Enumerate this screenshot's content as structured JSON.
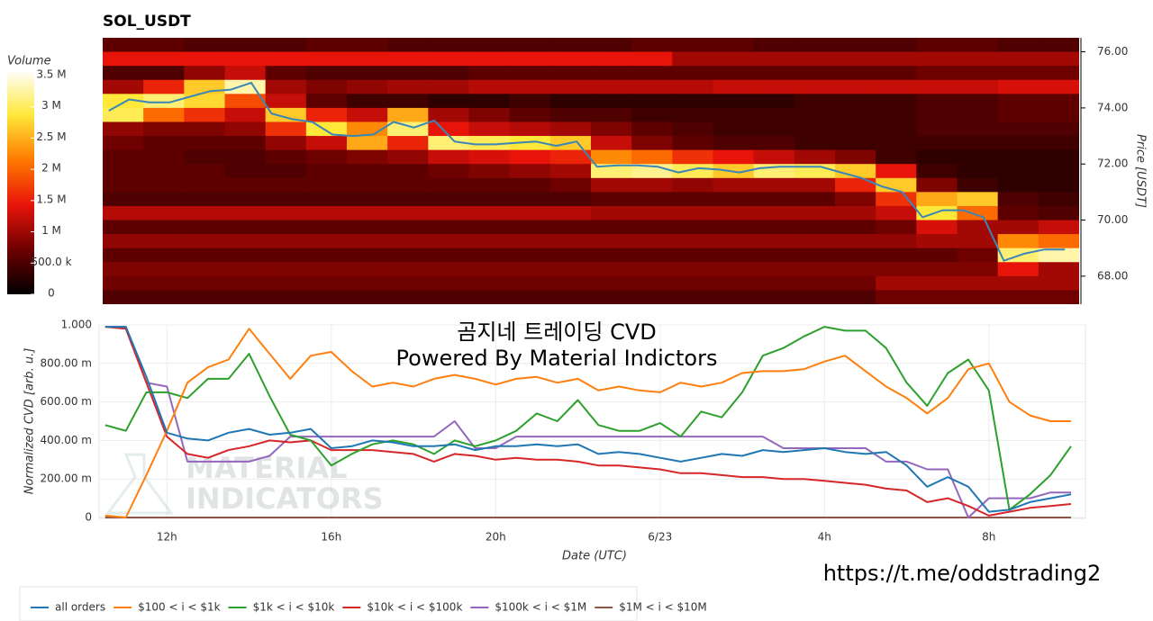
{
  "chart_data": [
    {
      "type": "heatmap",
      "title": "SOL_USDT",
      "ylabel": "Price [USDT]",
      "xlim": [
        10.35,
        34.35
      ],
      "ylim": [
        67,
        76.5
      ],
      "yticks": [
        {
          "value": 68,
          "label": "68.00"
        },
        {
          "value": 70,
          "label": "70.00"
        },
        {
          "value": 72,
          "label": "72.00"
        },
        {
          "value": 74,
          "label": "74.00"
        },
        {
          "value": 76,
          "label": "76.00"
        }
      ],
      "colorbar_title": "Volume",
      "zlim": [
        0,
        3.5
      ],
      "zticks": [
        0,
        {
          "value": 0.5,
          "label": "500.0 k"
        },
        {
          "value": 1,
          "label": "1 M"
        },
        {
          "value": 1.5,
          "label": "1.5 M"
        },
        {
          "value": 2,
          "label": "2 M"
        },
        {
          "value": 2.5,
          "label": "2.5 M"
        },
        {
          "value": 3,
          "label": "3 M"
        },
        {
          "value": 3.5,
          "label": "3.5 M"
        }
      ],
      "colormap": [
        "#000000",
        "#6e0000",
        "#e8140a",
        "#ff7a00",
        "#ffe83a",
        "#ffffff"
      ],
      "x_bins": [
        10.35,
        11.35,
        12.35,
        13.35,
        14.35,
        15.35,
        16.35,
        17.35,
        18.35,
        19.35,
        20.35,
        21.35,
        22.35,
        23.35,
        24.35,
        25.35,
        26.35,
        27.35,
        28.35,
        29.35,
        30.35,
        31.35,
        32.35,
        33.35,
        34.35
      ],
      "y_bins": [
        76.5,
        76,
        75.5,
        75,
        74.5,
        74,
        73.5,
        73,
        72.5,
        72,
        71.5,
        71,
        70.5,
        70,
        69.5,
        69,
        68.5,
        68,
        67.5,
        67
      ],
      "z": [
        [
          0.6,
          0.6,
          0.5,
          0.5,
          0.5,
          0.6,
          0.6,
          0.5,
          0.5,
          0.5,
          0.5,
          0.5,
          0.5,
          0.6,
          0.6,
          0.6,
          0.5,
          0.5,
          0.5,
          0.5,
          0.6,
          0.6,
          0.5,
          0.5
        ],
        [
          1.4,
          1.4,
          1.4,
          1.4,
          1.4,
          1.4,
          1.4,
          1.4,
          1.4,
          1.4,
          1.4,
          1.4,
          1.4,
          1.4,
          1.0,
          1.0,
          1.0,
          1.0,
          1.0,
          1.0,
          1.0,
          1.0,
          1.0,
          1.0
        ],
        [
          0.5,
          0.5,
          0.9,
          1.2,
          0.6,
          0.5,
          0.5,
          0.5,
          0.5,
          0.6,
          0.6,
          0.6,
          0.6,
          0.6,
          0.6,
          0.6,
          0.6,
          0.6,
          0.6,
          0.6,
          0.7,
          0.7,
          0.7,
          0.7
        ],
        [
          1.0,
          1.5,
          2.6,
          3.2,
          1.0,
          0.8,
          0.9,
          1.0,
          1.0,
          1.1,
          1.1,
          1.1,
          1.1,
          1.1,
          1.1,
          1.2,
          1.2,
          1.2,
          1.2,
          1.2,
          1.2,
          1.2,
          1.3,
          1.3
        ],
        [
          2.8,
          3.0,
          2.7,
          1.8,
          1.2,
          0.6,
          0.4,
          0.4,
          0.3,
          0.3,
          0.4,
          0.3,
          0.3,
          0.3,
          0.3,
          0.3,
          0.3,
          0.4,
          0.4,
          0.4,
          0.5,
          0.5,
          0.6,
          0.6
        ],
        [
          2.9,
          2.0,
          1.6,
          1.2,
          2.6,
          1.5,
          1.2,
          2.4,
          1.0,
          0.8,
          0.6,
          0.5,
          0.5,
          0.4,
          0.4,
          0.4,
          0.4,
          0.4,
          0.4,
          0.4,
          0.5,
          0.5,
          0.6,
          0.6
        ],
        [
          0.9,
          0.8,
          0.8,
          0.9,
          1.6,
          2.8,
          2.2,
          3.0,
          1.4,
          1.2,
          1.1,
          1.0,
          0.8,
          0.6,
          0.5,
          0.4,
          0.4,
          0.4,
          0.4,
          0.4,
          0.5,
          0.5,
          0.5,
          0.5
        ],
        [
          0.7,
          0.6,
          0.6,
          0.6,
          0.9,
          1.2,
          2.4,
          1.5,
          3.0,
          2.9,
          2.8,
          2.6,
          1.2,
          0.8,
          0.6,
          0.5,
          0.5,
          0.4,
          0.4,
          0.4,
          0.4,
          0.4,
          0.4,
          0.4
        ],
        [
          0.6,
          0.6,
          0.5,
          0.5,
          0.6,
          0.7,
          0.8,
          0.9,
          1.2,
          1.3,
          1.4,
          1.5,
          2.2,
          2.0,
          1.6,
          1.4,
          1.2,
          1.0,
          0.8,
          0.4,
          0.3,
          0.3,
          0.3,
          0.3
        ],
        [
          0.6,
          0.6,
          0.6,
          0.5,
          0.5,
          0.6,
          0.6,
          0.6,
          0.7,
          0.8,
          0.9,
          1.0,
          3.0,
          3.1,
          2.9,
          2.6,
          3.0,
          2.9,
          2.6,
          1.4,
          0.4,
          0.3,
          0.3,
          0.3
        ],
        [
          0.6,
          0.6,
          0.6,
          0.6,
          0.6,
          0.6,
          0.6,
          0.6,
          0.6,
          0.6,
          0.6,
          0.7,
          1.0,
          1.0,
          0.9,
          1.0,
          1.0,
          1.0,
          1.5,
          2.6,
          0.8,
          0.4,
          0.3,
          0.3
        ],
        [
          0.5,
          0.5,
          0.5,
          0.5,
          0.5,
          0.5,
          0.5,
          0.5,
          0.5,
          0.5,
          0.5,
          0.5,
          0.6,
          0.6,
          0.6,
          0.6,
          0.6,
          0.6,
          0.8,
          1.6,
          2.4,
          2.6,
          0.5,
          0.4
        ],
        [
          1.1,
          1.1,
          1.1,
          1.1,
          1.1,
          1.1,
          1.1,
          1.1,
          1.1,
          1.1,
          1.1,
          1.1,
          1.0,
          1.0,
          1.0,
          1.0,
          1.0,
          1.0,
          1.0,
          1.2,
          2.8,
          2.0,
          0.6,
          0.5
        ],
        [
          0.6,
          0.6,
          0.6,
          0.6,
          0.6,
          0.6,
          0.6,
          0.6,
          0.6,
          0.6,
          0.6,
          0.6,
          0.6,
          0.6,
          0.6,
          0.6,
          0.6,
          0.6,
          0.6,
          0.7,
          1.3,
          1.0,
          1.0,
          1.2
        ],
        [
          0.9,
          0.9,
          0.9,
          0.9,
          0.9,
          0.9,
          0.9,
          0.9,
          0.9,
          0.9,
          0.9,
          0.9,
          0.9,
          0.9,
          0.9,
          0.9,
          0.9,
          0.9,
          0.9,
          0.9,
          1.0,
          1.0,
          2.2,
          2.0
        ],
        [
          0.6,
          0.6,
          0.6,
          0.6,
          0.6,
          0.6,
          0.6,
          0.6,
          0.6,
          0.6,
          0.6,
          0.6,
          0.6,
          0.6,
          0.6,
          0.6,
          0.6,
          0.6,
          0.6,
          0.6,
          0.6,
          0.7,
          3.0,
          3.2
        ],
        [
          0.8,
          0.8,
          0.8,
          0.8,
          0.8,
          0.8,
          0.8,
          0.8,
          0.8,
          0.8,
          0.8,
          0.8,
          0.8,
          0.8,
          0.8,
          0.8,
          0.8,
          0.8,
          0.8,
          0.8,
          0.8,
          0.8,
          1.4,
          1.0
        ],
        [
          0.7,
          0.7,
          0.7,
          0.7,
          0.7,
          0.7,
          0.7,
          0.7,
          0.7,
          0.7,
          0.7,
          0.7,
          0.7,
          0.7,
          0.7,
          0.7,
          0.7,
          0.7,
          0.7,
          1.0,
          1.0,
          1.0,
          1.0,
          1.0
        ],
        [
          0.5,
          0.5,
          0.5,
          0.5,
          0.5,
          0.5,
          0.5,
          0.5,
          0.5,
          0.5,
          0.5,
          0.5,
          0.5,
          0.5,
          0.5,
          0.5,
          0.5,
          0.5,
          0.5,
          0.7,
          0.7,
          0.7,
          0.7,
          0.7
        ]
      ],
      "line": {
        "color": "#3a86b8",
        "x": [
          10.5,
          11,
          11.5,
          12,
          12.5,
          13,
          13.5,
          14,
          14.5,
          15,
          15.5,
          16,
          16.5,
          17,
          17.5,
          18,
          18.5,
          19,
          19.5,
          20,
          20.5,
          21,
          21.5,
          22,
          22.5,
          23,
          23.5,
          24,
          24.5,
          25,
          25.5,
          26,
          26.5,
          27,
          27.5,
          28,
          28.5,
          29,
          29.5,
          30,
          30.5,
          31,
          31.5,
          32,
          32.5,
          33,
          33.5,
          34
        ],
        "values": [
          73.9,
          74.3,
          74.2,
          74.2,
          74.4,
          74.6,
          74.65,
          74.9,
          73.8,
          73.6,
          73.5,
          73.05,
          73.0,
          73.05,
          73.5,
          73.3,
          73.55,
          72.8,
          72.7,
          72.7,
          72.75,
          72.8,
          72.65,
          72.8,
          71.9,
          71.95,
          71.95,
          71.9,
          71.7,
          71.85,
          71.8,
          71.7,
          71.85,
          71.9,
          71.9,
          71.9,
          71.7,
          71.5,
          71.2,
          71.0,
          70.1,
          70.35,
          70.35,
          70.1,
          68.55,
          68.8,
          68.95,
          68.95
        ]
      }
    },
    {
      "type": "line",
      "xlabel": "Date (UTC)",
      "ylabel": "Normalized CVD [arb. u.]",
      "annotations": [
        "곰지네 트레이딩 CVD",
        "Powered By Material Indictors"
      ],
      "watermark": [
        "MATERIAL",
        "INDICATORS"
      ],
      "xlim": [
        10.35,
        34.35
      ],
      "ylim": [
        0,
        1
      ],
      "grid": true,
      "xticks": [
        {
          "value": 12,
          "label": "12h"
        },
        {
          "value": 16,
          "label": "16h"
        },
        {
          "value": 20,
          "label": "20h"
        },
        {
          "value": 24,
          "label": "6/23"
        },
        {
          "value": 28,
          "label": "4h"
        },
        {
          "value": 32,
          "label": "8h"
        }
      ],
      "yticks": [
        0,
        {
          "value": 0.2,
          "label": "200.00 m"
        },
        {
          "value": 0.4,
          "label": "400.00 m"
        },
        {
          "value": 0.6,
          "label": "600.00 m"
        },
        {
          "value": 0.8,
          "label": "800.00 m"
        },
        {
          "value": 1,
          "label": "1.000"
        }
      ],
      "x": [
        10.5,
        11,
        11.5,
        12,
        12.5,
        13,
        13.5,
        14,
        14.5,
        15,
        15.5,
        16,
        16.5,
        17,
        17.5,
        18,
        18.5,
        19,
        19.5,
        20,
        20.5,
        21,
        21.5,
        22,
        22.5,
        23,
        23.5,
        24,
        24.5,
        25,
        25.5,
        26,
        26.5,
        27,
        27.5,
        28,
        28.5,
        29,
        29.5,
        30,
        30.5,
        31,
        31.5,
        32,
        32.5,
        33,
        33.5,
        34
      ],
      "series": [
        {
          "name": "all orders",
          "color": "#1f77b4",
          "values": [
            0.99,
            0.99,
            0.73,
            0.44,
            0.41,
            0.4,
            0.44,
            0.46,
            0.43,
            0.44,
            0.46,
            0.36,
            0.37,
            0.4,
            0.39,
            0.37,
            0.37,
            0.38,
            0.35,
            0.37,
            0.37,
            0.38,
            0.37,
            0.38,
            0.33,
            0.34,
            0.33,
            0.31,
            0.29,
            0.31,
            0.33,
            0.32,
            0.35,
            0.34,
            0.35,
            0.36,
            0.34,
            0.33,
            0.34,
            0.27,
            0.16,
            0.21,
            0.16,
            0.03,
            0.04,
            0.08,
            0.1,
            0.12
          ]
        },
        {
          "name": "$100 < i < $1k",
          "color": "#ff7f0e",
          "values": [
            0.01,
            0.0,
            0.22,
            0.45,
            0.7,
            0.78,
            0.82,
            0.98,
            0.85,
            0.72,
            0.84,
            0.86,
            0.76,
            0.68,
            0.7,
            0.68,
            0.72,
            0.74,
            0.72,
            0.69,
            0.72,
            0.73,
            0.7,
            0.72,
            0.66,
            0.68,
            0.66,
            0.65,
            0.7,
            0.68,
            0.7,
            0.75,
            0.76,
            0.76,
            0.77,
            0.81,
            0.84,
            0.76,
            0.68,
            0.62,
            0.54,
            0.62,
            0.77,
            0.8,
            0.6,
            0.53,
            0.5,
            0.5
          ]
        },
        {
          "name": "$1k < i < $10k",
          "color": "#2ca02c",
          "values": [
            0.48,
            0.45,
            0.65,
            0.65,
            0.62,
            0.72,
            0.72,
            0.85,
            0.63,
            0.43,
            0.4,
            0.27,
            0.33,
            0.38,
            0.4,
            0.38,
            0.33,
            0.4,
            0.37,
            0.4,
            0.45,
            0.54,
            0.5,
            0.61,
            0.48,
            0.45,
            0.45,
            0.49,
            0.42,
            0.55,
            0.52,
            0.65,
            0.84,
            0.88,
            0.94,
            0.99,
            0.97,
            0.97,
            0.88,
            0.7,
            0.58,
            0.75,
            0.82,
            0.66,
            0.04,
            0.12,
            0.22,
            0.37
          ]
        },
        {
          "name": "$10k < i < $100k",
          "color": "#d62728",
          "values": [
            0.99,
            0.98,
            0.7,
            0.42,
            0.33,
            0.31,
            0.35,
            0.37,
            0.4,
            0.39,
            0.4,
            0.35,
            0.35,
            0.35,
            0.34,
            0.33,
            0.29,
            0.33,
            0.32,
            0.3,
            0.31,
            0.3,
            0.3,
            0.29,
            0.27,
            0.27,
            0.26,
            0.25,
            0.23,
            0.23,
            0.22,
            0.21,
            0.21,
            0.2,
            0.2,
            0.19,
            0.18,
            0.17,
            0.15,
            0.14,
            0.08,
            0.1,
            0.06,
            0.01,
            0.03,
            0.05,
            0.06,
            0.07
          ]
        },
        {
          "name": "$100k < i < $1M",
          "color": "#9467bd",
          "values": [
            0.99,
            0.99,
            0.7,
            0.68,
            0.29,
            0.29,
            0.29,
            0.29,
            0.32,
            0.42,
            0.42,
            0.42,
            0.42,
            0.42,
            0.42,
            0.42,
            0.42,
            0.5,
            0.36,
            0.36,
            0.42,
            0.42,
            0.42,
            0.42,
            0.42,
            0.42,
            0.42,
            0.42,
            0.42,
            0.42,
            0.42,
            0.42,
            0.42,
            0.36,
            0.36,
            0.36,
            0.36,
            0.36,
            0.29,
            0.29,
            0.25,
            0.25,
            0.0,
            0.1,
            0.1,
            0.1,
            0.13,
            0.13
          ]
        },
        {
          "name": "$1M < i < $10M",
          "color": "#8c564b",
          "values": [
            0,
            0,
            0,
            0,
            0,
            0,
            0,
            0,
            0,
            0,
            0,
            0,
            0,
            0,
            0,
            0,
            0,
            0,
            0,
            0,
            0,
            0,
            0,
            0,
            0,
            0,
            0,
            0,
            0,
            0,
            0,
            0,
            0,
            0,
            0,
            0,
            0,
            0,
            0,
            0,
            0,
            0,
            0,
            0,
            0,
            0,
            0,
            0
          ]
        }
      ]
    }
  ],
  "footer_link": "https://t.me/oddstrading2"
}
